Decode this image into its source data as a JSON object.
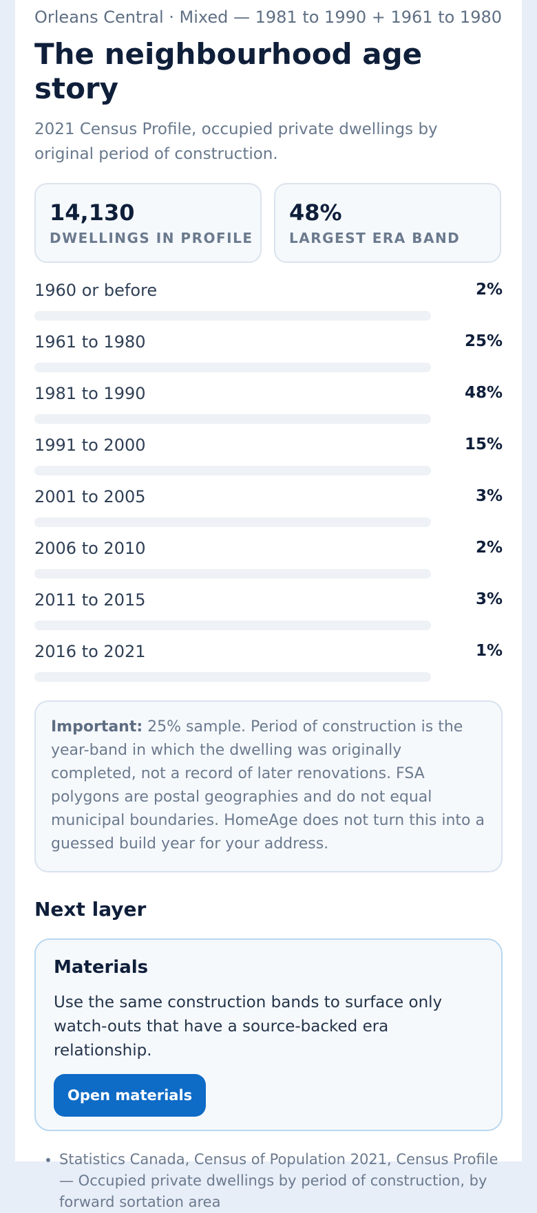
{
  "header": {
    "eyebrow": "Orleans Central · Mixed — 1981 to 1990 + 1961 to 1980",
    "title": "The neighbourhood age story",
    "lede": "2021 Census Profile, occupied private dwellings by original period of construction."
  },
  "stats": [
    {
      "value": "14,130",
      "label": "DWELLINGS IN PROFILE"
    },
    {
      "value": "48%",
      "label": "LARGEST ERA BAND"
    }
  ],
  "bars": [
    {
      "label": "1960 or before",
      "pct_text": "2%",
      "pct": 2
    },
    {
      "label": "1961 to 1980",
      "pct_text": "25%",
      "pct": 25
    },
    {
      "label": "1981 to 1990",
      "pct_text": "48%",
      "pct": 48
    },
    {
      "label": "1991 to 2000",
      "pct_text": "15%",
      "pct": 15
    },
    {
      "label": "2001 to 2005",
      "pct_text": "3%",
      "pct": 3
    },
    {
      "label": "2006 to 2010",
      "pct_text": "2%",
      "pct": 2
    },
    {
      "label": "2011 to 2015",
      "pct_text": "3%",
      "pct": 3
    },
    {
      "label": "2016 to 2021",
      "pct_text": "1%",
      "pct": 1
    }
  ],
  "note": {
    "lead": "Important:",
    "text": " 25% sample. Period of construction is the year-band in which the dwelling was originally completed, not a record of later renovations. FSA polygons are postal geographies and do not equal municipal boundaries. HomeAge does not turn this into a guessed build year for your address."
  },
  "next_layer": {
    "heading": "Next layer",
    "card_title": "Materials",
    "card_text": "Use the same construction bands to surface only watch-outs that have a source-backed era relationship.",
    "button_label": "Open materials"
  },
  "sources": [
    "Statistics Canada, Census of Population 2021, Census Profile — Occupied private dwellings by period of construction, by forward sortation area"
  ],
  "colors": {
    "accent": "#0e6bc6",
    "track": "#eef1f5",
    "background": "#e8eef8"
  }
}
